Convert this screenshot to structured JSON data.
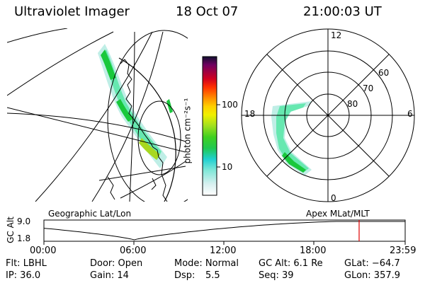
{
  "header": {
    "title": "Ultraviolet Imager",
    "date": "18 Oct 07",
    "time": "21:00:03 UT"
  },
  "colorbar": {
    "unit_label": "photon cm⁻²s⁻¹",
    "ticks": [
      "100",
      "10"
    ]
  },
  "left_map": {
    "caption": "Geographic Lat/Lon",
    "colors": {
      "aurora_bright": "#19c83c",
      "aurora_mid": "#66e8b0",
      "aurora_faint": "#bfeee6",
      "aurora_core": "#a8d820"
    }
  },
  "polar_plot": {
    "caption": "Apex MLat/MLT",
    "mlt_labels": {
      "top": "12",
      "right": "6",
      "bottom": "0",
      "left": "18"
    },
    "mlat_labels": [
      "60",
      "70",
      "80"
    ]
  },
  "altitude_plot": {
    "y_title": "GC Alt",
    "y_ticks": [
      "9.0",
      "1.8"
    ],
    "x_ticks": [
      "00:00",
      "06:00",
      "12:00",
      "18:00",
      "23:59"
    ],
    "current_time_marker_color": "#e00000"
  },
  "info": {
    "filter": "Flt: LBHL",
    "door": "Door: Open",
    "mode": "Mode: Normal",
    "gc_alt": "GC Alt: 6.1 Re",
    "glat": "GLat: −64.7",
    "ip": "IP: 36.0",
    "gain": "Gain: 14",
    "dsp_label": "Dsp:",
    "dsp_value": "5.5",
    "seq": "Seq: 39",
    "glon": "GLon: 357.9"
  }
}
